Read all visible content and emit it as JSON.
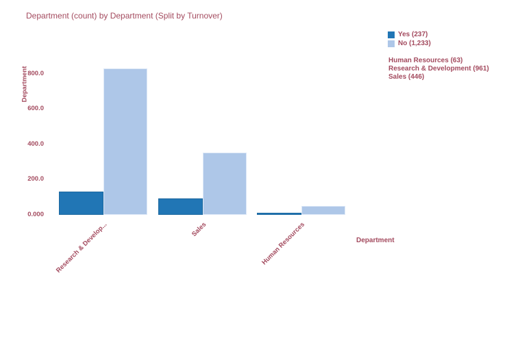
{
  "title": "Department (count) by Department (Split by Turnover)",
  "colors": {
    "series_yes": "#2176b5",
    "series_no": "#aec7e8",
    "text": "#a34a5e",
    "background": "#ffffff"
  },
  "category_totals": [
    "Human Resources (63)",
    "Research & Development (961)",
    "Sales (446)"
  ],
  "chart_data": {
    "type": "bar",
    "title": "Department (count) by Department (Split by Turnover)",
    "categories": [
      "Research & Development",
      "Sales",
      "Human Resources"
    ],
    "category_tick_labels": [
      "Research & Develop...",
      "Sales",
      "Human Resources"
    ],
    "series": [
      {
        "name": "Yes (237)",
        "color": "#2176b5",
        "values": [
          133,
          92,
          12
        ]
      },
      {
        "name": "No (1,233)",
        "color": "#aec7e8",
        "values": [
          828,
          354,
          51
        ]
      }
    ],
    "xlabel": "Department",
    "ylabel": "Department",
    "ylim": [
      0,
      850
    ],
    "yticks": [
      {
        "value": 0,
        "label": "0.000"
      },
      {
        "value": 200,
        "label": "200.0"
      },
      {
        "value": 400,
        "label": "400.0"
      },
      {
        "value": 600,
        "label": "600.0"
      },
      {
        "value": 800,
        "label": "800.0"
      }
    ],
    "grid": false,
    "legend_position": "top-right",
    "side_annotations": [
      "Human Resources (63)",
      "Research & Development (961)",
      "Sales (446)"
    ]
  }
}
